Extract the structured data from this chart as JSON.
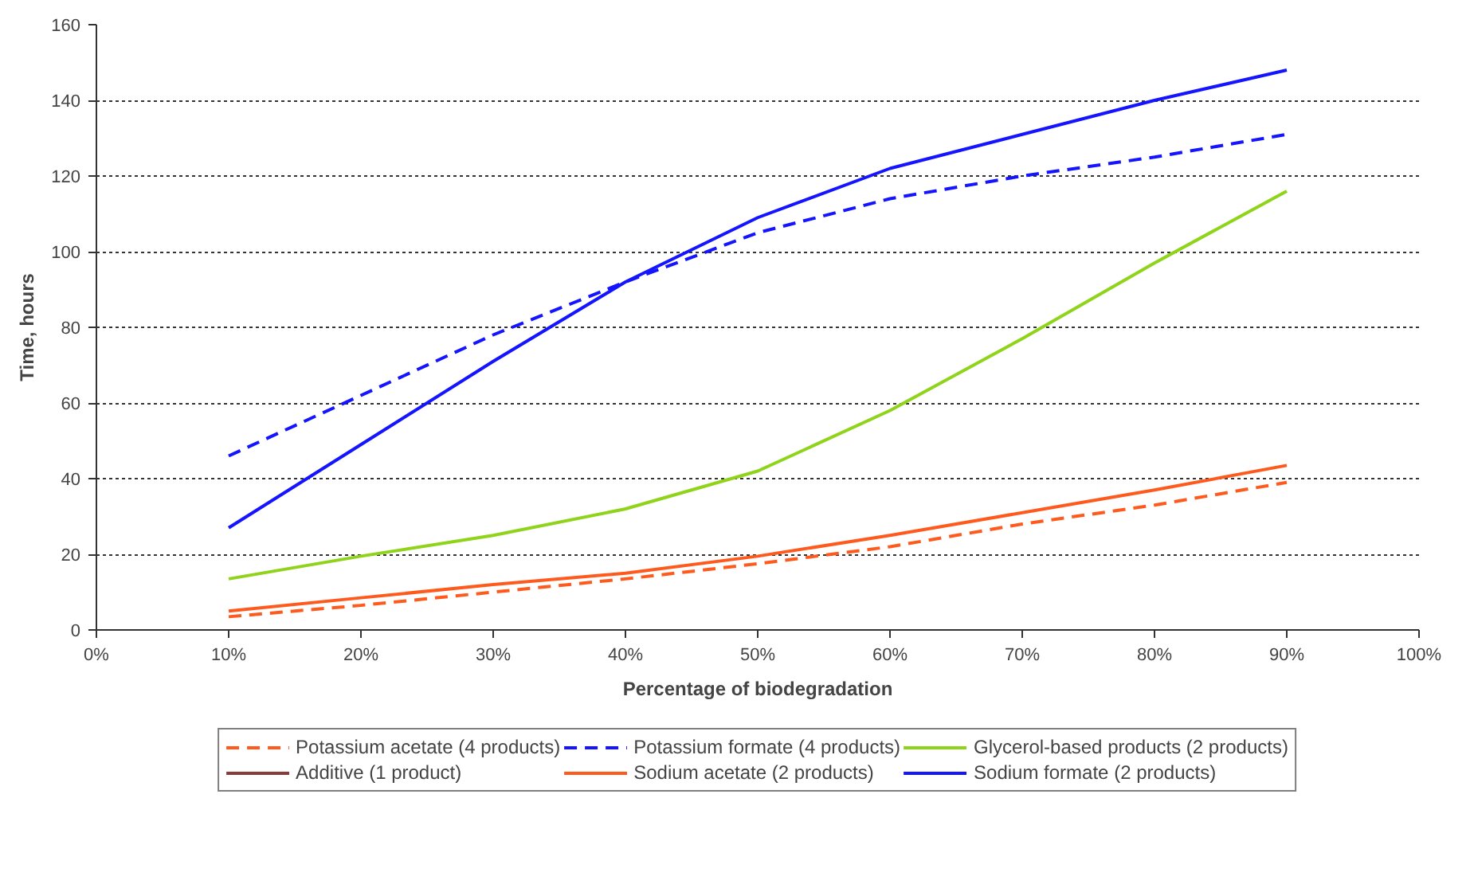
{
  "chart_data": {
    "type": "line",
    "xlabel": "Percentage of biodegradation",
    "ylabel": "Time, hours",
    "x": [
      10,
      20,
      30,
      40,
      50,
      60,
      70,
      80,
      90
    ],
    "xlim": [
      0,
      100
    ],
    "xticks": [
      {
        "value": 0,
        "label": "0%"
      },
      {
        "value": 10,
        "label": "10%"
      },
      {
        "value": 20,
        "label": "20%"
      },
      {
        "value": 30,
        "label": "30%"
      },
      {
        "value": 40,
        "label": "40%"
      },
      {
        "value": 50,
        "label": "50%"
      },
      {
        "value": 60,
        "label": "60%"
      },
      {
        "value": 70,
        "label": "70%"
      },
      {
        "value": 80,
        "label": "80%"
      },
      {
        "value": 90,
        "label": "90%"
      },
      {
        "value": 100,
        "label": "100%"
      }
    ],
    "ylim": [
      0,
      160
    ],
    "yticks": [
      0,
      20,
      40,
      60,
      80,
      100,
      120,
      140,
      160
    ],
    "grid": "y",
    "legend": "bottom",
    "marker": "none",
    "series": [
      {
        "name": "Potassium acetate (4 products)",
        "color": "#ff5a1e",
        "line_style": "dashed",
        "values": [
          3.5,
          6.5,
          10,
          13.5,
          17.5,
          22,
          28,
          33,
          39
        ]
      },
      {
        "name": "Potassium formate (4 products)",
        "color": "#1414ff",
        "line_style": "dashed",
        "values": [
          46,
          62,
          78,
          92,
          105,
          114,
          120,
          125,
          131
        ]
      },
      {
        "name": "Glycerol-based products (2 products)",
        "color": "#8fd41a",
        "line_style": "solid",
        "values": [
          13.5,
          19.5,
          25,
          32,
          42,
          58,
          77,
          97,
          116
        ]
      },
      {
        "name": "Additive (1 product)",
        "color": "#8b3a3a",
        "line_style": "solid",
        "values": [
          null,
          null,
          null,
          null,
          null,
          null,
          null,
          null,
          null
        ]
      },
      {
        "name": "Sodium acetate (2 products)",
        "color": "#ff5a1e",
        "line_style": "solid",
        "values": [
          5,
          8.5,
          12,
          15,
          19.5,
          25,
          31,
          37,
          43.5
        ]
      },
      {
        "name": "Sodium formate (2 products)",
        "color": "#1414ff",
        "line_style": "solid",
        "values": [
          27,
          49,
          71,
          92,
          109,
          122,
          131,
          140,
          148
        ]
      }
    ]
  }
}
